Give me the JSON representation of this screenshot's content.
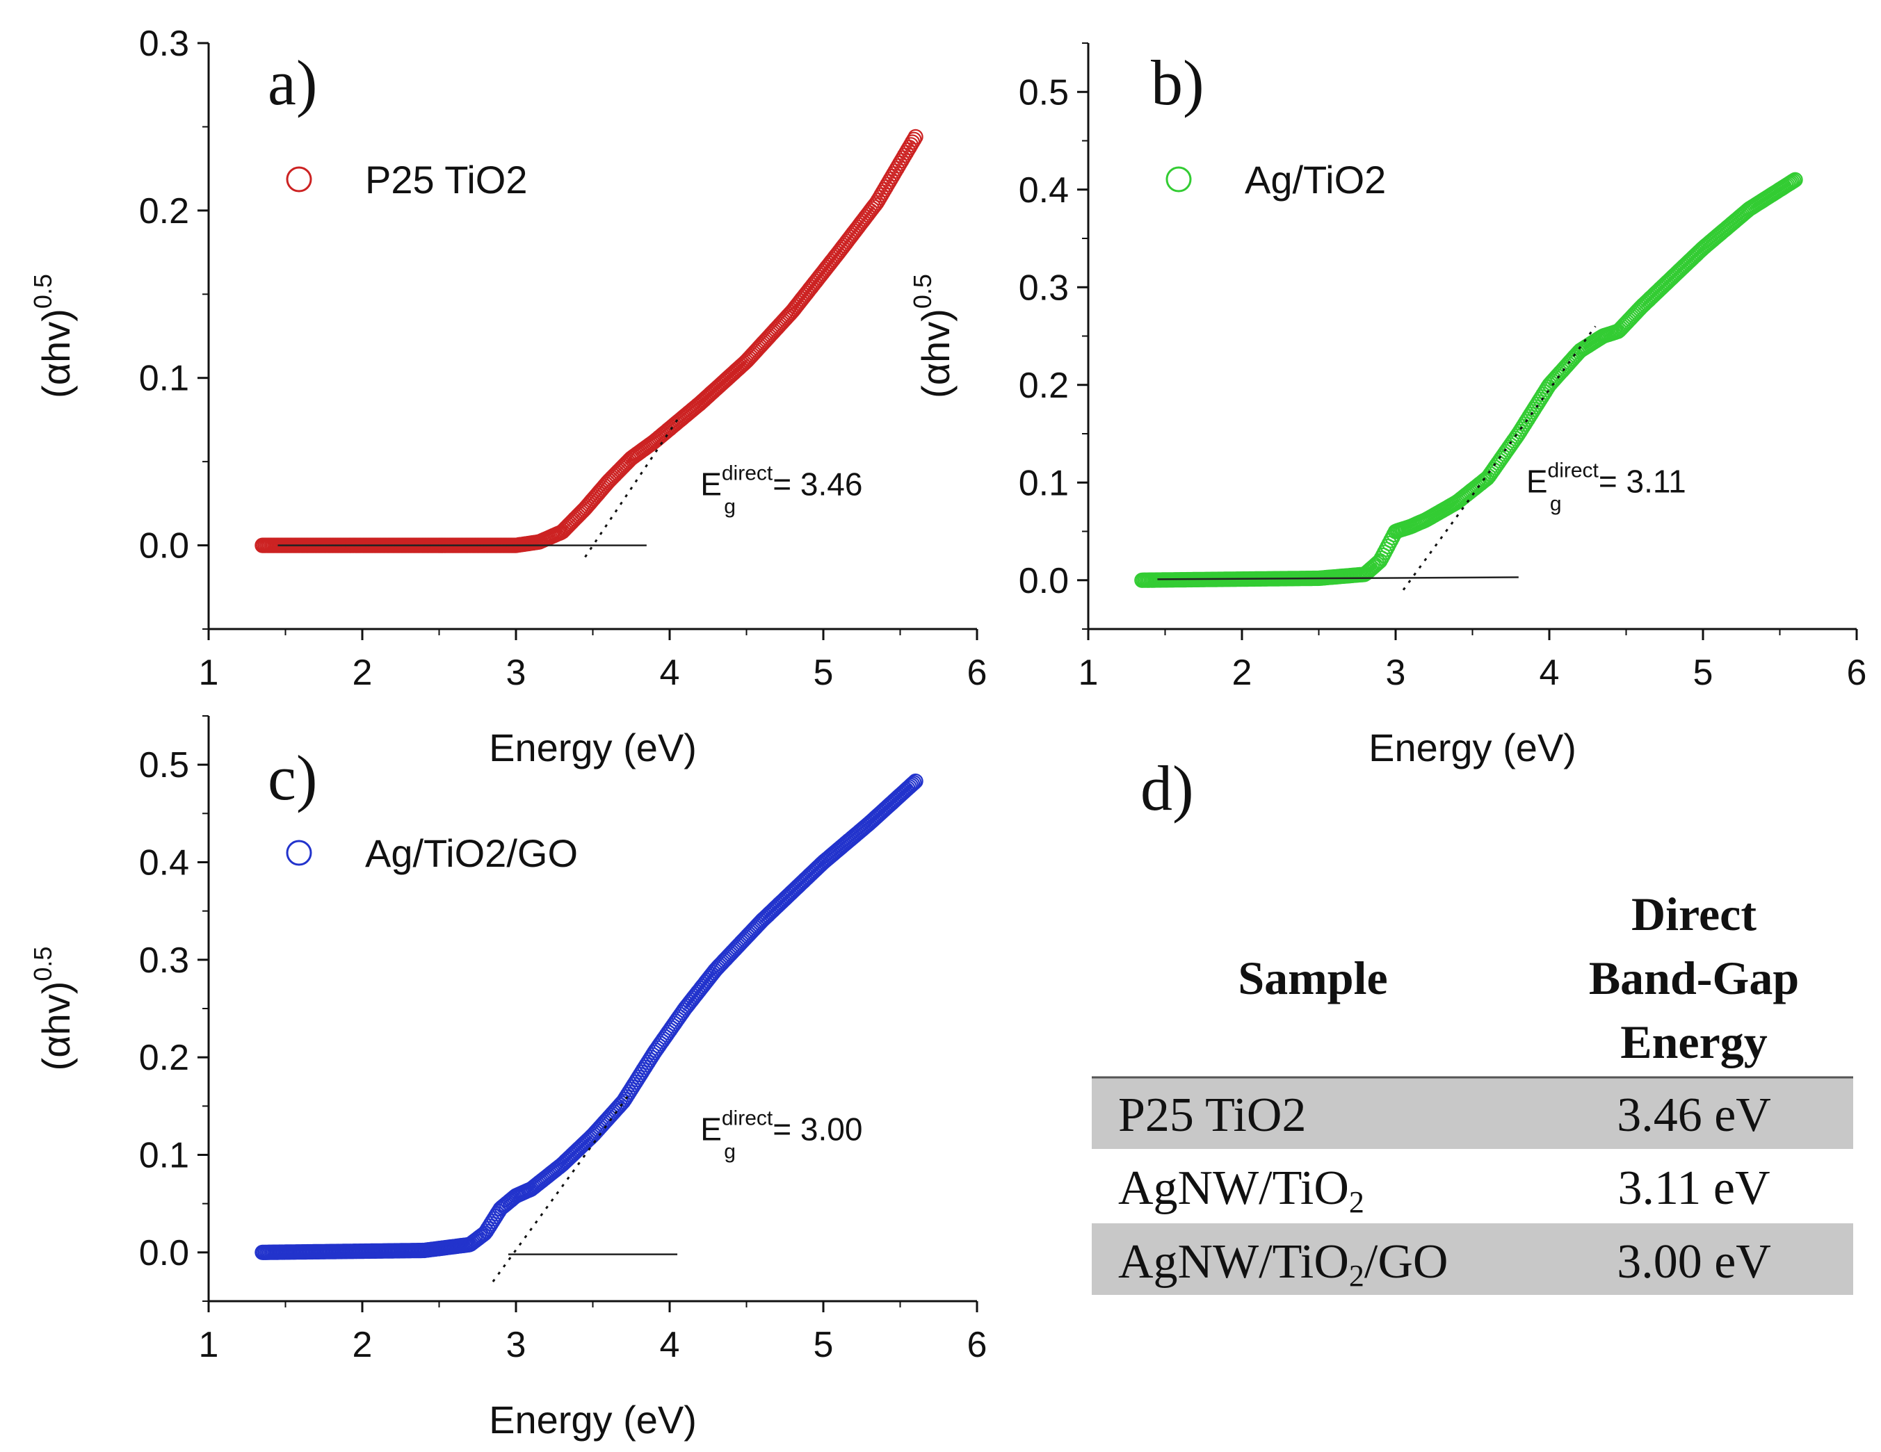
{
  "chart_data": [
    {
      "type": "scatter",
      "panel": "a)",
      "xlabel": "Energy (eV)",
      "ylabel": "(αhv)",
      "ylabel_power": "0.5",
      "xlim": [
        1,
        6
      ],
      "ylim": [
        -0.05,
        0.3
      ],
      "xticks": [
        1,
        2,
        3,
        4,
        5,
        6
      ],
      "yticks": [
        0.0,
        0.1,
        0.2,
        0.3
      ],
      "ytick_labels": [
        "0.0",
        "0.1",
        "0.2",
        "0.3"
      ],
      "legend": "P25 TiO2",
      "legend_position": "top-left",
      "color": "#cc2222",
      "series_anchors": [
        [
          1.35,
          0.0
        ],
        [
          2.5,
          0.0
        ],
        [
          3.0,
          0.0
        ],
        [
          3.15,
          0.002
        ],
        [
          3.3,
          0.008
        ],
        [
          3.45,
          0.022
        ],
        [
          3.6,
          0.038
        ],
        [
          3.75,
          0.052
        ],
        [
          3.9,
          0.062
        ],
        [
          4.2,
          0.085
        ],
        [
          4.5,
          0.11
        ],
        [
          4.8,
          0.14
        ],
        [
          5.1,
          0.175
        ],
        [
          5.35,
          0.205
        ],
        [
          5.6,
          0.244
        ]
      ],
      "tangent": [
        [
          3.45,
          -0.007
        ],
        [
          4.05,
          0.075
        ]
      ],
      "baseline": [
        [
          1.45,
          0.0
        ],
        [
          3.85,
          0.0
        ]
      ],
      "annotation": {
        "prefix": "E",
        "sub": "g",
        "sup": "direct",
        "value": "= 3.46",
        "x": 4.2,
        "y": 0.03
      }
    },
    {
      "type": "scatter",
      "panel": "b)",
      "xlabel": "Energy (eV)",
      "ylabel": "(αhv)",
      "ylabel_power": "0.5",
      "xlim": [
        1,
        6
      ],
      "ylim": [
        -0.05,
        0.55
      ],
      "xticks": [
        1,
        2,
        3,
        4,
        5,
        6
      ],
      "yticks": [
        0.0,
        0.1,
        0.2,
        0.3,
        0.4,
        0.5
      ],
      "ytick_labels": [
        "0.0",
        "0.1",
        "0.2",
        "0.3",
        "0.4",
        "0.5"
      ],
      "legend": "Ag/TiO2",
      "legend_position": "top-left",
      "color": "#33cc33",
      "series_anchors": [
        [
          1.35,
          0.0
        ],
        [
          2.5,
          0.002
        ],
        [
          2.8,
          0.006
        ],
        [
          2.9,
          0.02
        ],
        [
          3.0,
          0.05
        ],
        [
          3.1,
          0.055
        ],
        [
          3.2,
          0.062
        ],
        [
          3.4,
          0.08
        ],
        [
          3.6,
          0.105
        ],
        [
          3.8,
          0.15
        ],
        [
          4.0,
          0.2
        ],
        [
          4.2,
          0.235
        ],
        [
          4.35,
          0.25
        ],
        [
          4.45,
          0.255
        ],
        [
          4.6,
          0.28
        ],
        [
          5.0,
          0.34
        ],
        [
          5.3,
          0.38
        ],
        [
          5.6,
          0.41
        ]
      ],
      "tangent": [
        [
          3.05,
          -0.01
        ],
        [
          4.3,
          0.26
        ]
      ],
      "baseline": [
        [
          1.45,
          0.001
        ],
        [
          3.8,
          0.003
        ]
      ],
      "annotation": {
        "prefix": "E",
        "sub": "g",
        "sup": "direct",
        "value": "= 3.11",
        "x": 3.85,
        "y": 0.09
      }
    },
    {
      "type": "scatter",
      "panel": "c)",
      "xlabel": "Energy (eV)",
      "ylabel": "(αhv)",
      "ylabel_power": "0.5",
      "xlim": [
        1,
        6
      ],
      "ylim": [
        -0.05,
        0.55
      ],
      "xticks": [
        1,
        2,
        3,
        4,
        5,
        6
      ],
      "yticks": [
        0.0,
        0.1,
        0.2,
        0.3,
        0.4,
        0.5
      ],
      "ytick_labels": [
        "0.0",
        "0.1",
        "0.2",
        "0.3",
        "0.4",
        "0.5"
      ],
      "legend": "Ag/TiO2/GO",
      "legend_position": "top-left",
      "color": "#2233cc",
      "series_anchors": [
        [
          1.35,
          0.0
        ],
        [
          2.4,
          0.002
        ],
        [
          2.7,
          0.008
        ],
        [
          2.8,
          0.02
        ],
        [
          2.9,
          0.045
        ],
        [
          3.0,
          0.058
        ],
        [
          3.1,
          0.065
        ],
        [
          3.3,
          0.09
        ],
        [
          3.5,
          0.12
        ],
        [
          3.7,
          0.155
        ],
        [
          3.9,
          0.205
        ],
        [
          4.1,
          0.25
        ],
        [
          4.3,
          0.29
        ],
        [
          4.6,
          0.34
        ],
        [
          5.0,
          0.4
        ],
        [
          5.3,
          0.44
        ],
        [
          5.6,
          0.483
        ]
      ],
      "tangent": [
        [
          2.85,
          -0.03
        ],
        [
          3.75,
          0.165
        ]
      ],
      "baseline": [
        [
          2.95,
          -0.002
        ],
        [
          4.05,
          -0.002
        ]
      ],
      "annotation": {
        "prefix": "E",
        "sub": "g",
        "sup": "direct",
        "value": "= 3.00",
        "x": 4.2,
        "y": 0.115
      }
    }
  ],
  "table": {
    "panel": "d)",
    "header": {
      "sample": "Sample",
      "energy_lines": [
        "Direct",
        "Band-Gap",
        "Energy"
      ]
    },
    "rows": [
      {
        "sample": "P25 TiO2",
        "energy": "3.46 eV",
        "shaded": true
      },
      {
        "sample_main": "AgNW/TiO",
        "sample_sub": "2",
        "sample_tail": "",
        "energy": "3.11 eV",
        "shaded": false
      },
      {
        "sample_main": "AgNW/TiO",
        "sample_sub": "2",
        "sample_tail": "/GO",
        "energy": "3.00 eV",
        "shaded": true
      }
    ],
    "shade_color": "#c8c8c8"
  }
}
